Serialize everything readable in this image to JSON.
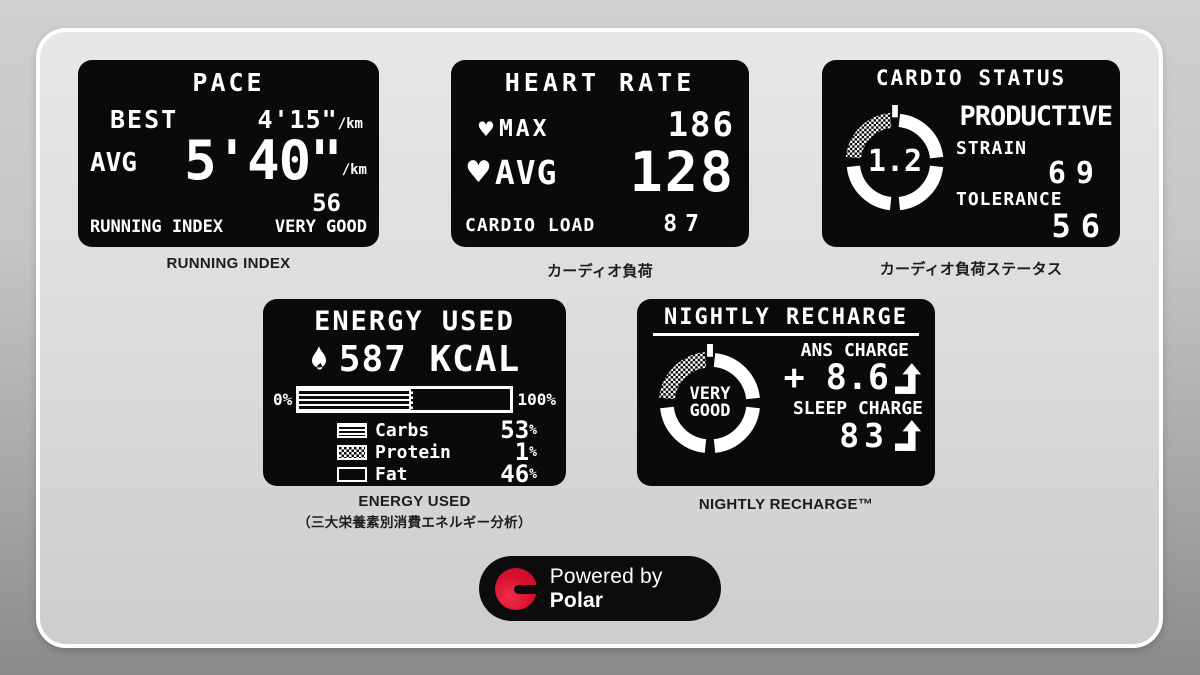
{
  "panels": {
    "pace": {
      "title": "PACE",
      "best_label": "BEST",
      "best_value": "4'15\"",
      "best_unit": "/km",
      "avg_label": "AVG",
      "avg_value": "5'40\"",
      "avg_unit": "/km",
      "running_index_label": "RUNNING INDEX",
      "running_index_value": "56",
      "running_index_rating": "VERY GOOD",
      "caption": "RUNNING INDEX"
    },
    "heart_rate": {
      "title": "HEART RATE",
      "max_label": "MAX",
      "max_value": "186",
      "avg_label": "AVG",
      "avg_value": "128",
      "cardio_load_label": "CARDIO LOAD",
      "cardio_load_value": "87",
      "caption": "カーディオ負荷"
    },
    "cardio_status": {
      "title": "CARDIO STATUS",
      "gauge_value": "1.2",
      "status": "PRODUCTIVE",
      "strain_label": "STRAIN",
      "strain_value": "69",
      "tolerance_label": "TOLERANCE",
      "tolerance_value": "56",
      "caption": "カーディオ負荷ステータス"
    },
    "energy": {
      "title": "ENERGY USED",
      "kcal_value": "587 KCAL",
      "bar_min_label": "0%",
      "bar_max_label": "100%",
      "legend": [
        {
          "name": "Carbs",
          "value": "53",
          "pct": 53,
          "pattern": "stripes"
        },
        {
          "name": "Protein",
          "value": "1",
          "pct": 1,
          "pattern": "checker"
        },
        {
          "name": "Fat",
          "value": "46",
          "pct": 46,
          "pattern": "empty"
        }
      ],
      "pct_sign": "%",
      "caption_line1": "ENERGY USED",
      "caption_line2": "（三大栄養素別消費エネルギー分析）"
    },
    "nightly": {
      "title": "NIGHTLY RECHARGE",
      "gauge_line1": "VERY",
      "gauge_line2": "GOOD",
      "ans_label": "ANS CHARGE",
      "ans_value": "+ 8.6",
      "sleep_label": "SLEEP CHARGE",
      "sleep_value": "83",
      "caption": "NIGHTLY RECHARGE™"
    }
  },
  "icons": {
    "heart": "♥"
  },
  "footer": {
    "powered_by": "Powered by ",
    "brand": "Polar"
  },
  "colors": {
    "panel_bg": "#0a0a0a",
    "panel_fg": "#ffffff",
    "polar_red": "#d6112e",
    "card_bg": "#dcdcdc",
    "outer_bg": "#9e9e9e"
  }
}
